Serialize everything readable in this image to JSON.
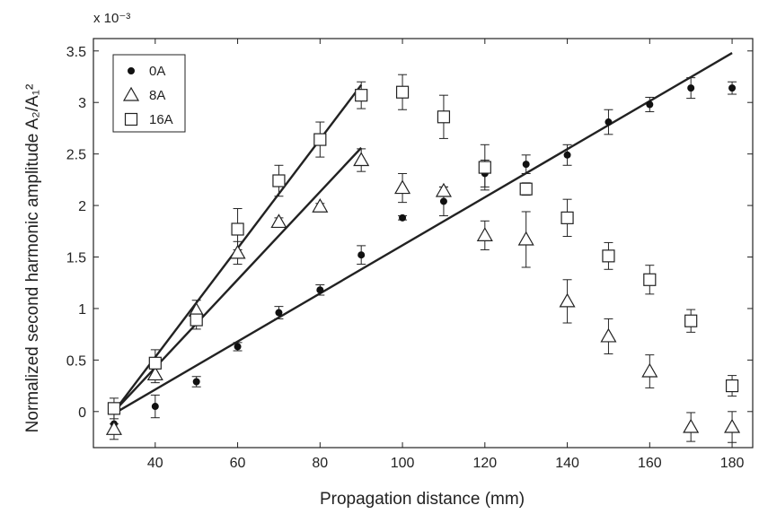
{
  "chart_data": {
    "type": "scatter",
    "xlabel": "Propagation distance (mm)",
    "ylabel": "Normalized second harmonic amplitude A₂/A₁²",
    "y_multiplier": "x 10⁻³",
    "xlim": [
      25,
      185
    ],
    "ylim": [
      -0.35,
      3.62
    ],
    "x_ticks": [
      40,
      60,
      80,
      100,
      120,
      140,
      160,
      180
    ],
    "y_ticks": [
      0,
      0.5,
      1,
      1.5,
      2,
      2.5,
      3,
      3.5
    ],
    "grid": false,
    "legend_position": "top-left",
    "series": [
      {
        "name": "0A",
        "marker": "filled-circle",
        "points": [
          {
            "x": 30,
            "y": -0.12,
            "err": 0.15
          },
          {
            "x": 40,
            "y": 0.05,
            "err": 0.11
          },
          {
            "x": 50,
            "y": 0.29,
            "err": 0.05
          },
          {
            "x": 60,
            "y": 0.63,
            "err": 0.04
          },
          {
            "x": 70,
            "y": 0.96,
            "err": 0.06
          },
          {
            "x": 80,
            "y": 1.18,
            "err": 0.05
          },
          {
            "x": 90,
            "y": 1.52,
            "err": 0.09
          },
          {
            "x": 100,
            "y": 1.88,
            "err": 0.02
          },
          {
            "x": 110,
            "y": 2.04,
            "err": 0.14
          },
          {
            "x": 120,
            "y": 2.31,
            "err": 0.13
          },
          {
            "x": 130,
            "y": 2.4,
            "err": 0.09
          },
          {
            "x": 140,
            "y": 2.49,
            "err": 0.1
          },
          {
            "x": 150,
            "y": 2.81,
            "err": 0.12
          },
          {
            "x": 160,
            "y": 2.98,
            "err": 0.07
          },
          {
            "x": 170,
            "y": 3.14,
            "err": 0.1
          },
          {
            "x": 180,
            "y": 3.14,
            "err": 0.06
          }
        ],
        "fit_line": {
          "x": [
            30,
            180
          ],
          "y": [
            -0.02,
            3.48
          ]
        }
      },
      {
        "name": "8A",
        "marker": "open-triangle",
        "points": [
          {
            "x": 30,
            "y": -0.17,
            "err": 0.05
          },
          {
            "x": 40,
            "y": 0.36,
            "err": 0.08
          },
          {
            "x": 50,
            "y": 0.98,
            "err": 0.1
          },
          {
            "x": 60,
            "y": 1.54,
            "err": 0.11
          },
          {
            "x": 70,
            "y": 1.84,
            "err": 0.04
          },
          {
            "x": 80,
            "y": 1.99,
            "err": 0.03
          },
          {
            "x": 90,
            "y": 2.44,
            "err": 0.11
          },
          {
            "x": 100,
            "y": 2.17,
            "err": 0.14
          },
          {
            "x": 110,
            "y": 2.14,
            "err": 0.04
          },
          {
            "x": 120,
            "y": 1.71,
            "err": 0.14
          },
          {
            "x": 130,
            "y": 1.67,
            "err": 0.27
          },
          {
            "x": 140,
            "y": 1.07,
            "err": 0.21
          },
          {
            "x": 150,
            "y": 0.73,
            "err": 0.17
          },
          {
            "x": 160,
            "y": 0.39,
            "err": 0.16
          },
          {
            "x": 170,
            "y": -0.15,
            "err": 0.14
          },
          {
            "x": 180,
            "y": -0.15,
            "err": 0.15
          }
        ],
        "fit_line": {
          "x": [
            30,
            90
          ],
          "y": [
            0.0,
            2.56
          ]
        }
      },
      {
        "name": "16A",
        "marker": "open-square",
        "points": [
          {
            "x": 30,
            "y": 0.03,
            "err": 0.1
          },
          {
            "x": 40,
            "y": 0.47,
            "err": 0.13
          },
          {
            "x": 50,
            "y": 0.89,
            "err": 0.09
          },
          {
            "x": 60,
            "y": 1.77,
            "err": 0.2
          },
          {
            "x": 70,
            "y": 2.24,
            "err": 0.15
          },
          {
            "x": 80,
            "y": 2.64,
            "err": 0.17
          },
          {
            "x": 90,
            "y": 3.07,
            "err": 0.13
          },
          {
            "x": 100,
            "y": 3.1,
            "err": 0.17
          },
          {
            "x": 110,
            "y": 2.86,
            "err": 0.21
          },
          {
            "x": 120,
            "y": 2.37,
            "err": 0.22
          },
          {
            "x": 130,
            "y": 2.16,
            "err": 0.06
          },
          {
            "x": 140,
            "y": 1.88,
            "err": 0.18
          },
          {
            "x": 150,
            "y": 1.51,
            "err": 0.13
          },
          {
            "x": 160,
            "y": 1.28,
            "err": 0.14
          },
          {
            "x": 170,
            "y": 0.88,
            "err": 0.11
          },
          {
            "x": 180,
            "y": 0.25,
            "err": 0.1
          }
        ],
        "fit_line": {
          "x": [
            30,
            90
          ],
          "y": [
            0.0,
            3.17
          ]
        }
      }
    ]
  }
}
